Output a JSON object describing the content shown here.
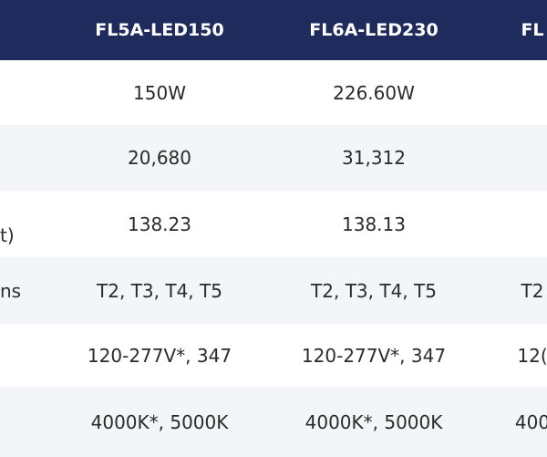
{
  "table": {
    "header": [
      "FL5A-LED150",
      "FL6A-LED230",
      "FL"
    ],
    "rows": [
      {
        "cells": [
          "150W",
          "226.60W"
        ]
      },
      {
        "cells": [
          "20,680",
          "31,312"
        ]
      },
      {
        "label": "t)",
        "cells": [
          "138.23",
          "138.13"
        ]
      },
      {
        "label": "ns",
        "cells": [
          "T2, T3, T4, T5",
          "T2, T3, T4, T5",
          "T2"
        ]
      },
      {
        "cells": [
          "120-277V*, 347",
          "120-277V*, 347",
          "12("
        ]
      },
      {
        "cells": [
          "4000K*, 5000K",
          "4000K*, 5000K",
          "400"
        ]
      }
    ]
  }
}
